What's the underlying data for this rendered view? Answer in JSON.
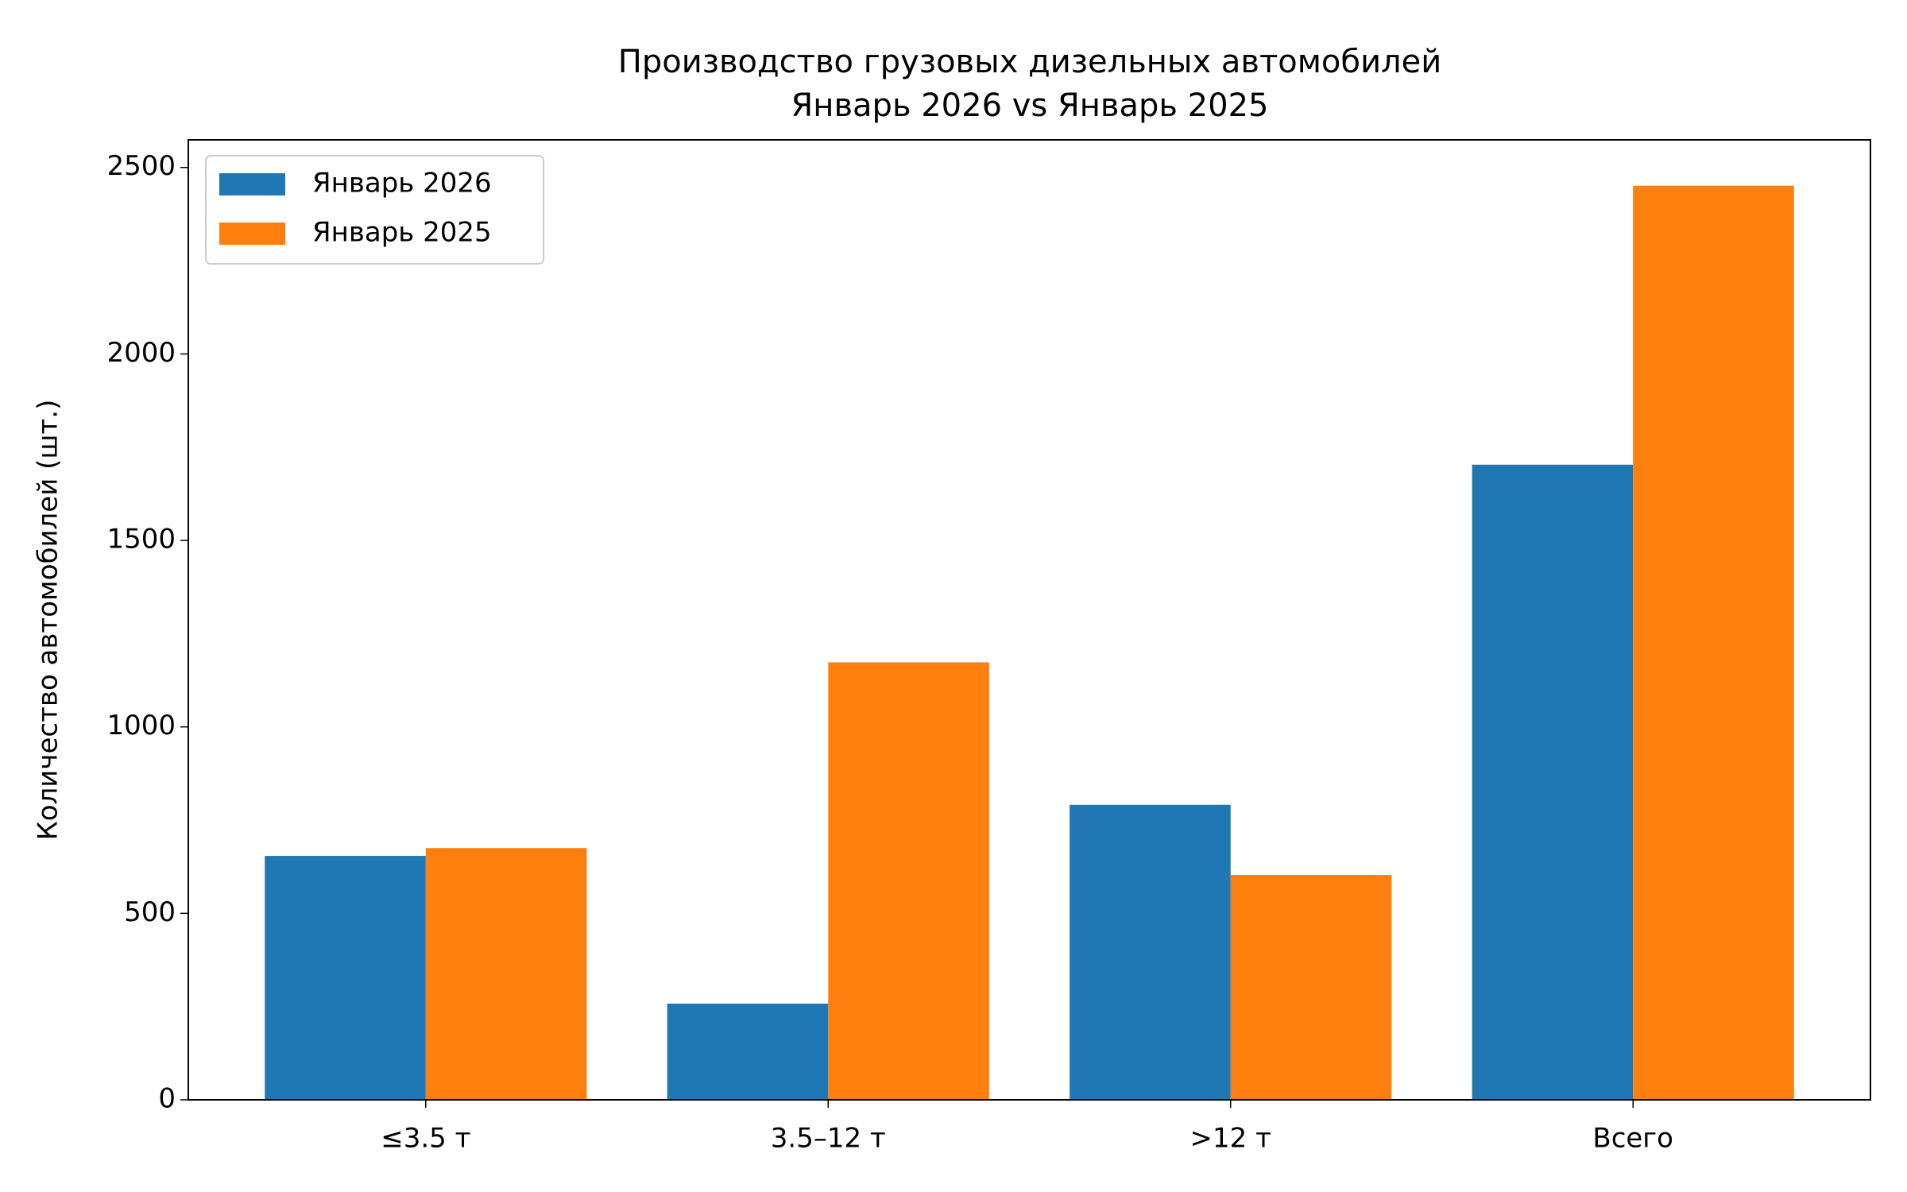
{
  "chart_data": {
    "type": "bar",
    "title": "Производство грузовых дизельных автомобилей",
    "subtitle": "Январь 2026 vs Январь 2025",
    "y_label": "Количество автомобилей (шт.)",
    "categories": [
      "≤3.5 т",
      "3.5–12 т",
      ">12 т",
      "Всего"
    ],
    "series": [
      {
        "name": "Январь 2026",
        "color": "#1f77b4",
        "values": [
          654,
          258,
          791,
          1703
        ]
      },
      {
        "name": "Январь 2025",
        "color": "#ff7f0e",
        "values": [
          675,
          1173,
          603,
          2451
        ]
      }
    ],
    "ylim": [
      0,
      2574
    ],
    "yticks": [
      0,
      500,
      1000,
      1500,
      2000,
      2500
    ],
    "legend": "upper left"
  }
}
